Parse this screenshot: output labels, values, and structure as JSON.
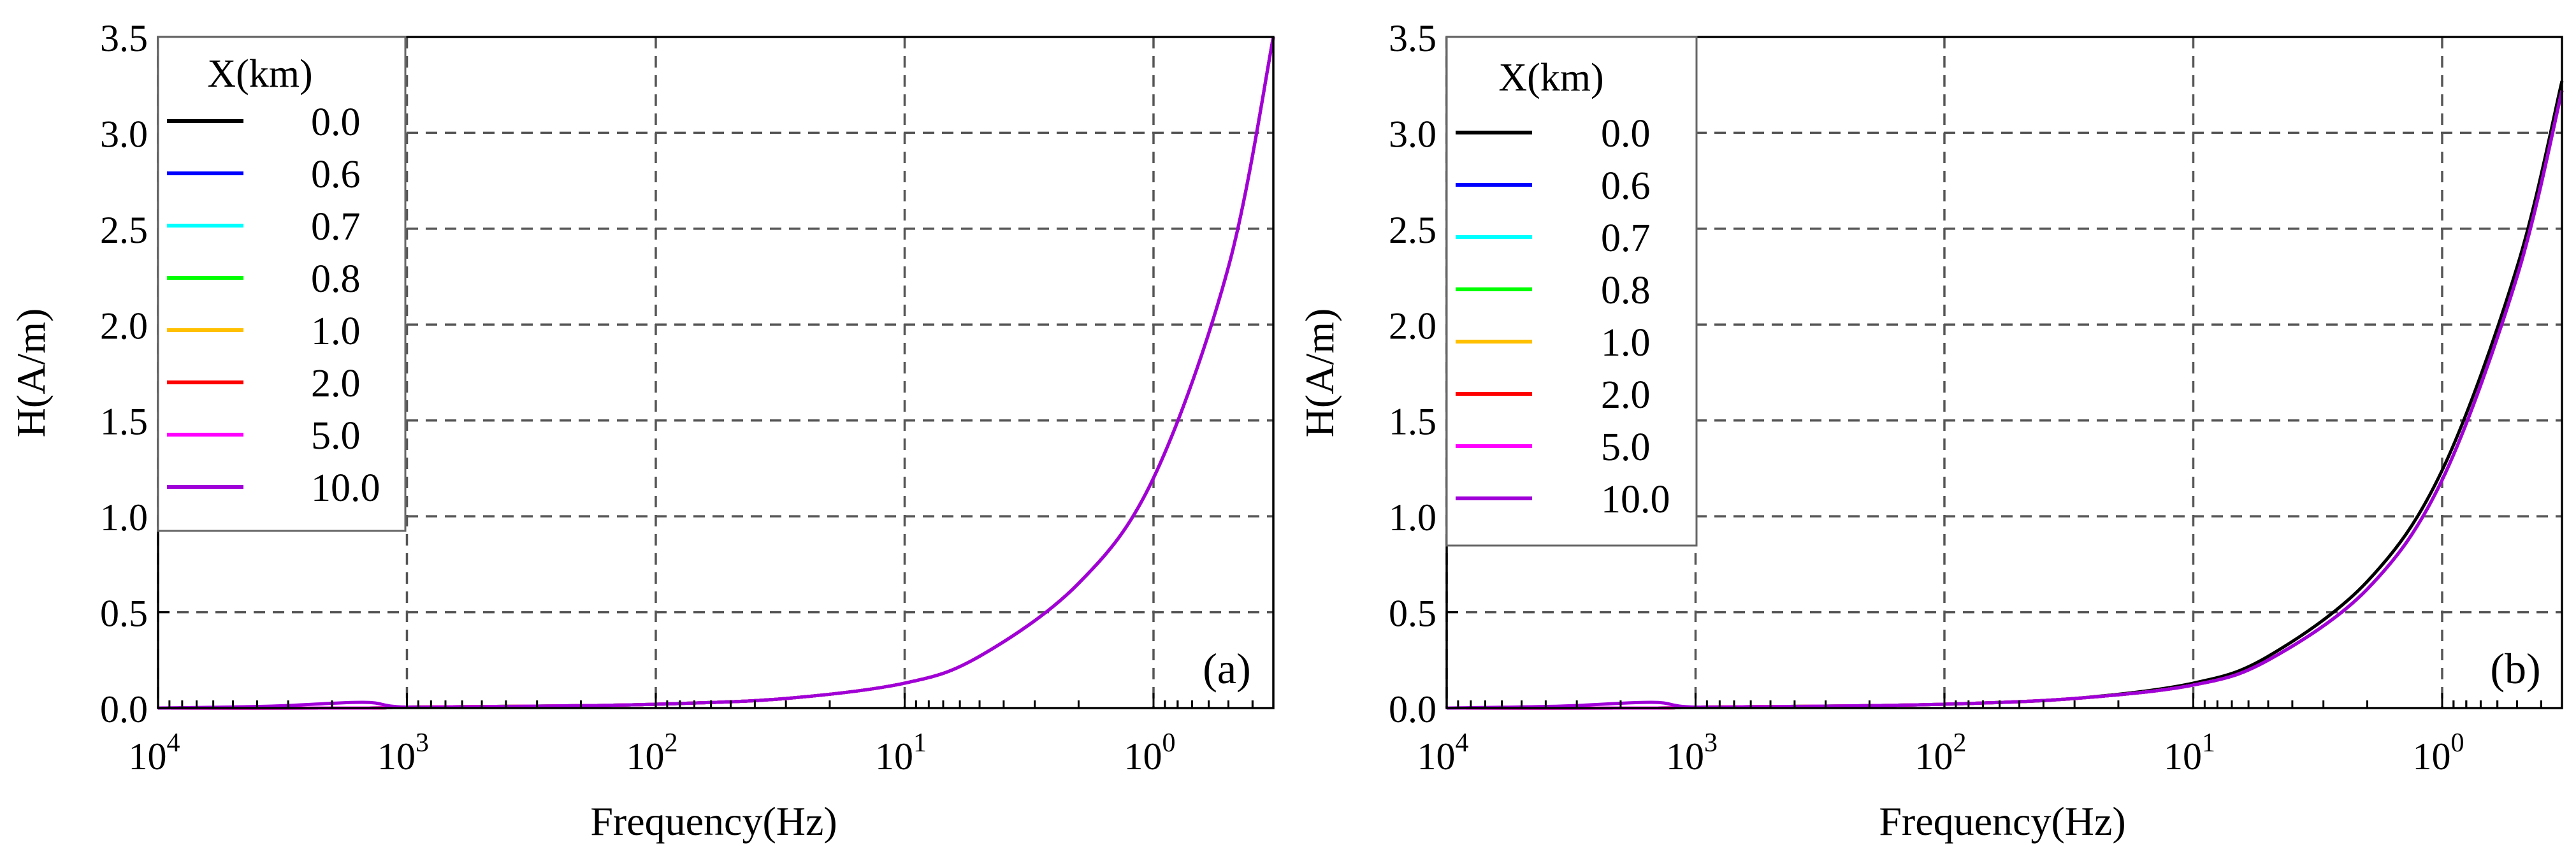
{
  "chart_data": [
    {
      "type": "line",
      "panel_label": "(a)",
      "xlabel": "Frequency(Hz)",
      "ylabel": "H(A/m)",
      "xscale": "log",
      "x_direction": "decreasing",
      "xlim": [
        10000,
        0.33
      ],
      "ylim": [
        0,
        3.5
      ],
      "xtick_labels": [
        {
          "base": "10",
          "exp": "4"
        },
        {
          "base": "10",
          "exp": "3"
        },
        {
          "base": "10",
          "exp": "2"
        },
        {
          "base": "10",
          "exp": "1"
        },
        {
          "base": "10",
          "exp": "0"
        }
      ],
      "xtick_values": [
        10000,
        1000,
        100,
        10,
        1
      ],
      "yticks": [
        "0.0",
        "0.5",
        "1.0",
        "1.5",
        "2.0",
        "2.5",
        "3.0",
        "3.5"
      ],
      "ytick_values": [
        0,
        0.5,
        1.0,
        1.5,
        2.0,
        2.5,
        3.0,
        3.5
      ],
      "grid": true,
      "legend": {
        "title": "X(km)",
        "location": "top-left"
      },
      "series": [
        {
          "name": "0.0",
          "color": "#000000",
          "x": [
            10000,
            1500,
            1000,
            300,
            100,
            30,
            10,
            5,
            2,
            1,
            0.5,
            0.33
          ],
          "y": [
            0.0,
            0.0,
            0.005,
            0.01,
            0.02,
            0.05,
            0.13,
            0.27,
            0.65,
            1.2,
            2.3,
            3.5
          ]
        },
        {
          "name": "0.6",
          "color": "#0000ff",
          "x": [
            10000,
            1500,
            1000,
            300,
            100,
            30,
            10,
            5,
            2,
            1,
            0.5,
            0.33
          ],
          "y": [
            0.0,
            0.0,
            0.005,
            0.01,
            0.02,
            0.05,
            0.13,
            0.27,
            0.65,
            1.2,
            2.3,
            3.5
          ]
        },
        {
          "name": "0.7",
          "color": "#00ffff",
          "x": [
            10000,
            1500,
            1000,
            300,
            100,
            30,
            10,
            5,
            2,
            1,
            0.5,
            0.33
          ],
          "y": [
            0.0,
            0.0,
            0.005,
            0.01,
            0.02,
            0.05,
            0.13,
            0.27,
            0.65,
            1.2,
            2.3,
            3.5
          ]
        },
        {
          "name": "0.8",
          "color": "#00ff00",
          "x": [
            10000,
            1500,
            1000,
            300,
            100,
            30,
            10,
            5,
            2,
            1,
            0.5,
            0.33
          ],
          "y": [
            0.0,
            0.0,
            0.005,
            0.01,
            0.02,
            0.05,
            0.13,
            0.27,
            0.65,
            1.2,
            2.3,
            3.5
          ]
        },
        {
          "name": "1.0",
          "color": "#ffc000",
          "x": [
            10000,
            1500,
            1000,
            300,
            100,
            30,
            10,
            5,
            2,
            1,
            0.5,
            0.33
          ],
          "y": [
            0.0,
            0.0,
            0.005,
            0.01,
            0.02,
            0.05,
            0.13,
            0.27,
            0.65,
            1.2,
            2.3,
            3.5
          ]
        },
        {
          "name": "2.0",
          "color": "#ff0000",
          "x": [
            10000,
            1500,
            1000,
            300,
            100,
            30,
            10,
            5,
            2,
            1,
            0.5,
            0.33
          ],
          "y": [
            0.0,
            0.0,
            0.005,
            0.01,
            0.02,
            0.05,
            0.13,
            0.27,
            0.65,
            1.2,
            2.3,
            3.5
          ]
        },
        {
          "name": "5.0",
          "color": "#ff00ff",
          "x": [
            10000,
            1500,
            1000,
            300,
            100,
            30,
            10,
            5,
            2,
            1,
            0.5,
            0.33
          ],
          "y": [
            0.0,
            0.0,
            0.005,
            0.01,
            0.02,
            0.05,
            0.13,
            0.27,
            0.65,
            1.2,
            2.3,
            3.5
          ]
        },
        {
          "name": "10.0",
          "color": "#a000d8",
          "x": [
            10000,
            3500,
            1500,
            1000,
            300,
            100,
            30,
            10,
            5,
            2,
            1,
            0.5,
            0.33
          ],
          "y": [
            0.0,
            0.01,
            0.03,
            0.005,
            0.01,
            0.02,
            0.05,
            0.13,
            0.27,
            0.65,
            1.2,
            2.3,
            3.5
          ]
        }
      ]
    },
    {
      "type": "line",
      "panel_label": "(b)",
      "xlabel": "Frequency(Hz)",
      "ylabel": "H(A/m)",
      "xscale": "log",
      "x_direction": "decreasing",
      "xlim": [
        10000,
        0.33
      ],
      "ylim": [
        0,
        3.5
      ],
      "xtick_labels": [
        {
          "base": "10",
          "exp": "4"
        },
        {
          "base": "10",
          "exp": "3"
        },
        {
          "base": "10",
          "exp": "2"
        },
        {
          "base": "10",
          "exp": "1"
        },
        {
          "base": "10",
          "exp": "0"
        }
      ],
      "xtick_values": [
        10000,
        1000,
        100,
        10,
        1
      ],
      "yticks": [
        "0.0",
        "0.5",
        "1.0",
        "1.5",
        "2.0",
        "2.5",
        "3.0",
        "3.5"
      ],
      "ytick_values": [
        0,
        0.5,
        1.0,
        1.5,
        2.0,
        2.5,
        3.0,
        3.5
      ],
      "grid": true,
      "legend": {
        "title": "X(km)",
        "location": "top-left"
      },
      "series": [
        {
          "name": "0.0",
          "color": "#000000",
          "x": [
            10000,
            1500,
            1000,
            300,
            100,
            30,
            10,
            5,
            2,
            1,
            0.5,
            0.33
          ],
          "y": [
            0.0,
            0.0,
            0.005,
            0.01,
            0.02,
            0.05,
            0.13,
            0.27,
            0.66,
            1.24,
            2.3,
            3.27
          ]
        },
        {
          "name": "0.6",
          "color": "#0000ff",
          "x": [
            10000,
            1500,
            1000,
            300,
            100,
            30,
            10,
            5,
            2,
            1,
            0.5,
            0.33
          ],
          "y": [
            0.0,
            0.0,
            0.005,
            0.01,
            0.02,
            0.05,
            0.12,
            0.25,
            0.62,
            1.19,
            2.25,
            3.22
          ]
        },
        {
          "name": "0.7",
          "color": "#00ffff",
          "x": [
            10000,
            1500,
            1000,
            300,
            100,
            30,
            10,
            5,
            2,
            1,
            0.5,
            0.33
          ],
          "y": [
            0.0,
            0.0,
            0.005,
            0.01,
            0.02,
            0.05,
            0.12,
            0.25,
            0.62,
            1.19,
            2.25,
            3.22
          ]
        },
        {
          "name": "0.8",
          "color": "#00ff00",
          "x": [
            10000,
            1500,
            1000,
            300,
            100,
            30,
            10,
            5,
            2,
            1,
            0.5,
            0.33
          ],
          "y": [
            0.0,
            0.0,
            0.005,
            0.01,
            0.02,
            0.05,
            0.12,
            0.25,
            0.62,
            1.19,
            2.25,
            3.22
          ]
        },
        {
          "name": "1.0",
          "color": "#ffc000",
          "x": [
            10000,
            1500,
            1000,
            300,
            100,
            30,
            10,
            5,
            2,
            1,
            0.5,
            0.33
          ],
          "y": [
            0.0,
            0.0,
            0.005,
            0.01,
            0.02,
            0.05,
            0.12,
            0.25,
            0.62,
            1.19,
            2.25,
            3.22
          ]
        },
        {
          "name": "2.0",
          "color": "#ff0000",
          "x": [
            10000,
            1500,
            1000,
            300,
            100,
            30,
            10,
            5,
            2,
            1,
            0.5,
            0.33
          ],
          "y": [
            0.0,
            0.0,
            0.005,
            0.01,
            0.02,
            0.05,
            0.12,
            0.25,
            0.62,
            1.19,
            2.25,
            3.22
          ]
        },
        {
          "name": "5.0",
          "color": "#ff00ff",
          "x": [
            10000,
            1500,
            1000,
            300,
            100,
            30,
            10,
            5,
            2,
            1,
            0.5,
            0.33
          ],
          "y": [
            0.0,
            0.0,
            0.005,
            0.01,
            0.02,
            0.05,
            0.12,
            0.25,
            0.62,
            1.19,
            2.25,
            3.22
          ]
        },
        {
          "name": "10.0",
          "color": "#a000d8",
          "x": [
            10000,
            3500,
            1500,
            1000,
            300,
            100,
            30,
            10,
            5,
            2,
            1,
            0.5,
            0.33
          ],
          "y": [
            0.0,
            0.01,
            0.03,
            0.005,
            0.01,
            0.02,
            0.05,
            0.12,
            0.25,
            0.62,
            1.19,
            2.25,
            3.22
          ]
        }
      ]
    }
  ]
}
